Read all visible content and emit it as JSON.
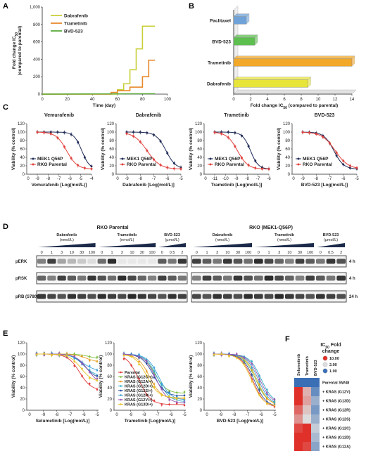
{
  "panels": {
    "A": {
      "letter": "A"
    },
    "B": {
      "letter": "B"
    },
    "C": {
      "letter": "C"
    },
    "D": {
      "letter": "D"
    },
    "E": {
      "letter": "E"
    },
    "F": {
      "letter": "F"
    }
  },
  "chart_data": [
    {
      "panel": "A",
      "type": "line",
      "xlabel": "Time (day)",
      "ylabel": "Fold change IC50 (compared to parental)",
      "ylabel_line1": "Fold change IC",
      "ylabel_sub": "50",
      "ylabel_line2": "(compared to parental)",
      "xlim": [
        0,
        100
      ],
      "ylim": [
        0,
        1000
      ],
      "xticks": [
        "0",
        "20",
        "40",
        "60",
        "80",
        "100"
      ],
      "yticks": [
        "0",
        "200",
        "400",
        "600",
        "800",
        "1,000"
      ],
      "series": [
        {
          "name": "Dabrafenib",
          "color": "#c8cf3a",
          "x": [
            0,
            55,
            60,
            60,
            65,
            65,
            70,
            70,
            75,
            75,
            80,
            80,
            90
          ],
          "y": [
            0,
            0,
            0,
            50,
            50,
            120,
            120,
            280,
            280,
            520,
            520,
            780,
            780
          ]
        },
        {
          "name": "Trametinib",
          "color": "#e8892b",
          "x": [
            0,
            50,
            55,
            55,
            60,
            60,
            70,
            70,
            80,
            80,
            85,
            85,
            90
          ],
          "y": [
            0,
            0,
            0,
            20,
            20,
            40,
            40,
            80,
            80,
            200,
            200,
            390,
            390
          ]
        },
        {
          "name": "BVD-523",
          "color": "#5aaa3c",
          "x": [
            0,
            90
          ],
          "y": [
            0,
            5
          ]
        }
      ]
    },
    {
      "panel": "B",
      "type": "bar",
      "orientation": "horizontal",
      "categories": [
        "Paclitaxel",
        "BVD-523",
        "Trametinib",
        "Dabrafenib"
      ],
      "values": [
        1.5,
        2.5,
        14,
        8.8
      ],
      "colors": [
        "#6fa2d8",
        "#5cbf4e",
        "#f2a829",
        "#e7e43a"
      ],
      "xlabel": "Fold change IC50 (compared to parental)",
      "xlabel_pre": "Fold change IC",
      "xlabel_sub": "50",
      "xlabel_post": " (compared to parental)",
      "xlim": [
        0,
        14
      ],
      "xticks": [
        "0",
        "2",
        "4",
        "6",
        "8",
        "10",
        "12",
        "14"
      ]
    },
    {
      "panel": "C",
      "type": "line",
      "ylabel": "Viability (% control)",
      "yticks": [
        "0",
        "20",
        "40",
        "60",
        "80",
        "100",
        "120"
      ],
      "legend": [
        "MEK1 Q56P",
        "RKO Parental"
      ],
      "colors": {
        "mek": "#1f2a55",
        "rko": "#e0403c"
      },
      "subplots": [
        {
          "title": "Vemurafenib",
          "xlabel": "Vemurafenib [Log(mol/L)]",
          "xticks": [
            "0",
            "-9",
            "-8",
            "-7",
            "-6",
            "-5",
            "-4"
          ],
          "mek_ic50": -4.9,
          "rko_ic50": -6.3
        },
        {
          "title": "Dabrafenib",
          "xlabel": "Dabrafenib [Log(mol/L)]",
          "xticks": [
            "0",
            "-9",
            "-8",
            "-7",
            "-6",
            "-5"
          ],
          "mek_ic50": -6.1,
          "rko_ic50": -7.5
        },
        {
          "title": "Trametinib",
          "xlabel": "Trametinib [Log(mol/L)]",
          "xticks": [
            "0",
            "-11",
            "-10",
            "-9",
            "-8",
            "-7",
            "-6"
          ],
          "mek_ic50": -7.7,
          "rko_ic50": -8.9
        },
        {
          "title": "BVD-523",
          "xlabel": "BVD-523 [Log(mol/L)]",
          "xticks": [
            "0",
            "-9",
            "-8",
            "-7",
            "-6",
            "-5"
          ],
          "mek_ic50": -6.7,
          "rko_ic50": -6.6
        }
      ]
    },
    {
      "panel": "E",
      "type": "line",
      "ylabel": "Viability (% control)",
      "yticks": [
        "0",
        "20",
        "40",
        "60",
        "80",
        "100",
        "120"
      ],
      "series_names": [
        "Parental",
        "KRAS (G12C/+)",
        "KRAS (G12A/+)",
        "KRAS (G12D/+)",
        "KRAS (G12S/+)",
        "KRAS (G12R/+)",
        "KRAS (G12V/+)",
        "KRAS (G13D/+)"
      ],
      "series_colors": [
        "#e03a3a",
        "#7fbf3f",
        "#e8a02a",
        "#35b0c8",
        "#2a4fa0",
        "#3aa0d8",
        "#9b59b6",
        "#e8c22a"
      ],
      "subplots": [
        {
          "xlabel": "Selumetinib [Log(mol/L)]",
          "xticks": [
            "0",
            "-9",
            "-8",
            "-7",
            "-6",
            "-5"
          ]
        },
        {
          "xlabel": "Trametinib [Log(mol/L)]",
          "xticks": [
            "0",
            "-9",
            "-8",
            "-7",
            "-6",
            "-5"
          ]
        },
        {
          "xlabel": "BVD-523 [Log(mol/L)]",
          "xticks": [
            "0",
            "-9",
            "-8",
            "-7",
            "-6",
            "-5"
          ]
        }
      ]
    },
    {
      "panel": "F",
      "type": "heatmap",
      "columns": [
        "Selumetinib",
        "Trametinib",
        "BVD-523"
      ],
      "rows": [
        "Parental SW48",
        "+ KRAS (G12V)",
        "+ KRAS (G13D)",
        "+ KRAS (G12R)",
        "+ KRAS (G12S)",
        "+ KRAS (G12C)",
        "+ KRAS (G12D)",
        "+ KRAS (G12A)"
      ],
      "values": [
        [
          1.0,
          1.0,
          1.0
        ],
        [
          10.0,
          3.0,
          1.2
        ],
        [
          10.0,
          3.5,
          1.5
        ],
        [
          6.0,
          2.5,
          1.3
        ],
        [
          4.0,
          2.0,
          1.5
        ],
        [
          8.0,
          10.0,
          1.8
        ],
        [
          10.0,
          10.0,
          1.6
        ],
        [
          10.0,
          8.0,
          1.4
        ]
      ],
      "legend_title_line1": "IC50 Fold",
      "legend_title_pre": "IC",
      "legend_title_sub": "50",
      "legend_title_post": " Fold",
      "legend_title_line2": "change",
      "legend": [
        {
          "label": "10.00",
          "color": "#e0302a"
        },
        {
          "label": "2.00",
          "color": "#dddddd"
        },
        {
          "label": "1.00",
          "color": "#3b6fb5"
        }
      ]
    }
  ],
  "blot": {
    "left_title": "RKO Parental",
    "right_title": "RKO (MEK1-Q56P)",
    "left_groups": [
      {
        "name": "Dabrafenib",
        "unit": "(nmol/L)",
        "doses": [
          "0",
          "1",
          "3",
          "10",
          "30",
          "100"
        ]
      },
      {
        "name": "Trametinib",
        "unit": "(nmol/L)",
        "doses": [
          "0",
          "1",
          "3",
          "10",
          "30",
          "100"
        ]
      },
      {
        "name": "BVD-523",
        "unit": "(µmol/L)",
        "doses": [
          "0",
          "0.5",
          "2"
        ]
      }
    ],
    "right_groups": [
      {
        "name": "Dabrafenib",
        "unit": "(nmol/L)",
        "doses": [
          "0",
          "1",
          "3",
          "10",
          "30",
          "100"
        ]
      },
      {
        "name": "Trametinib",
        "unit": "(nmol/L)",
        "doses": [
          "0",
          "1",
          "3",
          "10",
          "30",
          "100"
        ]
      },
      {
        "name": "BVD-523",
        "unit": "(µmol/L)",
        "doses": [
          "0",
          "0.5",
          "2"
        ]
      }
    ],
    "rows": [
      {
        "label": "pERK",
        "time": "4 h"
      },
      {
        "label": "pRSK",
        "time": "4 h"
      },
      {
        "label": "pRB (S780)",
        "time": "24 h"
      }
    ]
  }
}
